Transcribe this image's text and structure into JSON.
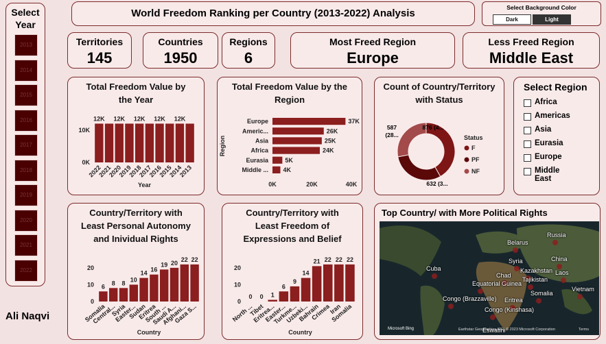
{
  "header": {
    "title": "World Freedom Ranking per Country (2013-2022) Analysis"
  },
  "background_toggle": {
    "label": "Select Background Color",
    "options": [
      "Dark",
      "Light"
    ],
    "selected": "Light"
  },
  "year_slicer": {
    "title": "Select Year",
    "years": [
      "2013",
      "2014",
      "2015",
      "2016",
      "2017",
      "2018",
      "2019",
      "2020",
      "2021",
      "2022"
    ]
  },
  "kpis": [
    {
      "label": "Territories",
      "value": 145
    },
    {
      "label": "Countries",
      "value": 1950
    },
    {
      "label": "Regions",
      "value": 6
    },
    {
      "label": "Most Freed Region",
      "value": "Europe"
    },
    {
      "label": "Less Freed Region",
      "value": "Middle East"
    }
  ],
  "author": "Ali Naqvi",
  "region_slicer": {
    "title": "Select Region",
    "options": [
      "Africa",
      "Americas",
      "Asia",
      "Eurasia",
      "Europe",
      "Middle East"
    ]
  },
  "chart_data": [
    {
      "type": "bar",
      "title": "Total Freedom Value by the Year",
      "categories": [
        "2022",
        "2021",
        "2020",
        "2019",
        "2018",
        "2017",
        "2016",
        "2015",
        "2014",
        "2013"
      ],
      "values": [
        12000,
        12000,
        12000,
        12000,
        12000,
        12000,
        12000,
        12000,
        12000,
        12000
      ],
      "value_labels": [
        "12K",
        null,
        "12K",
        null,
        "12K",
        null,
        "12K",
        null,
        "12K",
        null
      ],
      "color": "#8b1e1e",
      "ylim": [
        0,
        14000
      ],
      "yticks": [
        {
          "value": 0,
          "label": "0K"
        },
        {
          "value": 10000,
          "label": "10K"
        }
      ],
      "xlabel": "Year"
    },
    {
      "type": "hbar",
      "title": "Total Freedom Value by the Region",
      "categories": [
        "Europe",
        "Americ...",
        "Asia",
        "Africa",
        "Eurasia",
        "Middle ..."
      ],
      "values": [
        37000,
        26000,
        25000,
        24000,
        5000,
        4000
      ],
      "value_labels": [
        "37K",
        "26K",
        "25K",
        "24K",
        "5K",
        "4K"
      ],
      "color": "#8b1e1e",
      "xlim": [
        0,
        40000
      ],
      "xticks": [
        {
          "value": 0,
          "label": "0K"
        },
        {
          "value": 20000,
          "label": "20K"
        },
        {
          "value": 40000,
          "label": "40K"
        }
      ],
      "ylabel": "Region"
    },
    {
      "type": "donut",
      "title": "Count of Country/Territory with Status",
      "categories": [
        "F",
        "PF",
        "NF"
      ],
      "values": [
        876,
        632,
        587
      ],
      "value_labels": [
        "876 (4...",
        "632 (3...",
        "587 (28..."
      ],
      "colors": [
        "#7e1616",
        "#5a0808",
        "#a34a4a"
      ],
      "legend_title": "Status"
    },
    {
      "type": "bar",
      "title": "Country/Territory with Least Personal Autonomy and Inividual Rights",
      "categories": [
        "Somalia",
        "Central...",
        "Syria",
        "Easter...",
        "Sudan",
        "Eritrea",
        "South ...",
        "Saudi A...",
        "Afghani...",
        "Gaza S..."
      ],
      "values": [
        6,
        8,
        8,
        10,
        14,
        16,
        19,
        20,
        22,
        22
      ],
      "color": "#8b1e1e",
      "ylim": [
        0,
        24
      ],
      "yticks": [
        0,
        10,
        20
      ],
      "xlabel": "Country"
    },
    {
      "type": "bar",
      "title": "Country/Territory with Least Freedom of Expressions and Belief",
      "categories": [
        "North ...",
        "Tibet",
        "Eritrea...",
        "Easter...",
        "Turkme...",
        "Uzbeki...",
        "Bahrain",
        "Crimea",
        "Iran",
        "Somalia"
      ],
      "values": [
        0,
        0,
        1,
        6,
        9,
        14,
        21,
        22,
        22,
        22
      ],
      "color": "#8b1e1e",
      "ylim": [
        0,
        24
      ],
      "yticks": [
        0,
        10,
        20
      ],
      "xlabel": "Country"
    }
  ],
  "map": {
    "title": "Top Country/ with More Political Rights",
    "places": [
      "Belarus",
      "Russia",
      "Syria",
      "China",
      "Cuba",
      "Kazakhstan",
      "Chad",
      "Laos",
      "Tajikistan",
      "Equatorial Guinea",
      "Vietnam",
      "Somalia",
      "Eritrea",
      "Congo (Brazzaville)",
      "Congo (Kinshasa)",
      "Eswatini"
    ],
    "brand": "Microsoft Bing",
    "attribution": "Earthstar Geographics SIO, © 2023 Microsoft Corporation",
    "terms": "Terms"
  }
}
